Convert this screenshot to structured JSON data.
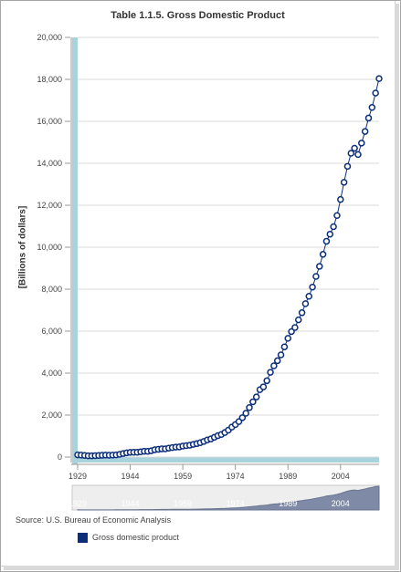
{
  "chart_data": {
    "type": "line",
    "title": "Table 1.1.5. Gross Domestic Product",
    "ylabel": "[Billions of dollars]",
    "xlabel": "",
    "ylim": [
      0,
      20000
    ],
    "xlim": [
      1929,
      2015
    ],
    "y_ticks": [
      "0",
      "2,000",
      "4,000",
      "6,000",
      "8,000",
      "10,000",
      "12,000",
      "14,000",
      "16,000",
      "18,000",
      "20,000"
    ],
    "x_ticks": [
      "1929",
      "1944",
      "1959",
      "1974",
      "1989",
      "2004"
    ],
    "navigator_ticks": [
      "1929",
      "1944",
      "1959",
      "1974",
      "1989",
      "2004"
    ],
    "grid": true,
    "legend_position": "bottom",
    "series": [
      {
        "name": "Gross domestic product",
        "color": "#0b2e7a",
        "marker": "open-circle",
        "x": [
          1929,
          1930,
          1931,
          1932,
          1933,
          1934,
          1935,
          1936,
          1937,
          1938,
          1939,
          1940,
          1941,
          1942,
          1943,
          1944,
          1945,
          1946,
          1947,
          1948,
          1949,
          1950,
          1951,
          1952,
          1953,
          1954,
          1955,
          1956,
          1957,
          1958,
          1959,
          1960,
          1961,
          1962,
          1963,
          1964,
          1965,
          1966,
          1967,
          1968,
          1969,
          1970,
          1971,
          1972,
          1973,
          1974,
          1975,
          1976,
          1977,
          1978,
          1979,
          1980,
          1981,
          1982,
          1983,
          1984,
          1985,
          1986,
          1987,
          1988,
          1989,
          1990,
          1991,
          1992,
          1993,
          1994,
          1995,
          1996,
          1997,
          1998,
          1999,
          2000,
          2001,
          2002,
          2003,
          2004,
          2005,
          2006,
          2007,
          2008,
          2009,
          2010,
          2011,
          2012,
          2013,
          2014,
          2015
        ],
        "values": [
          104.6,
          92.2,
          77.4,
          59.5,
          57.2,
          66.8,
          74.3,
          84.9,
          93.0,
          87.4,
          93.5,
          102.9,
          129.4,
          166.0,
          203.1,
          224.6,
          228.2,
          227.8,
          249.9,
          274.8,
          272.8,
          300.2,
          347.3,
          367.7,
          389.7,
          391.1,
          426.2,
          450.1,
          474.9,
          482.0,
          522.5,
          543.3,
          563.3,
          605.1,
          638.6,
          685.8,
          743.7,
          815.0,
          861.7,
          942.5,
          1019.9,
          1075.9,
          1167.8,
          1282.4,
          1428.5,
          1548.8,
          1688.9,
          1877.6,
          2086.0,
          2356.6,
          2632.1,
          2862.5,
          3211.0,
          3345.0,
          3638.1,
          4040.7,
          4346.7,
          4590.2,
          4870.2,
          5252.6,
          5657.7,
          5979.6,
          6174.0,
          6539.3,
          6878.7,
          7308.8,
          7664.1,
          8100.2,
          8608.5,
          9089.2,
          9660.6,
          10284.8,
          10621.8,
          10977.5,
          11510.7,
          12274.9,
          13093.7,
          13855.9,
          14477.6,
          14718.6,
          14418.7,
          14964.4,
          15517.9,
          16155.3,
          16663.2,
          17348.1,
          18036.6
        ]
      }
    ]
  },
  "source_text": "Source: U.S. Bureau of Economic Analysis"
}
